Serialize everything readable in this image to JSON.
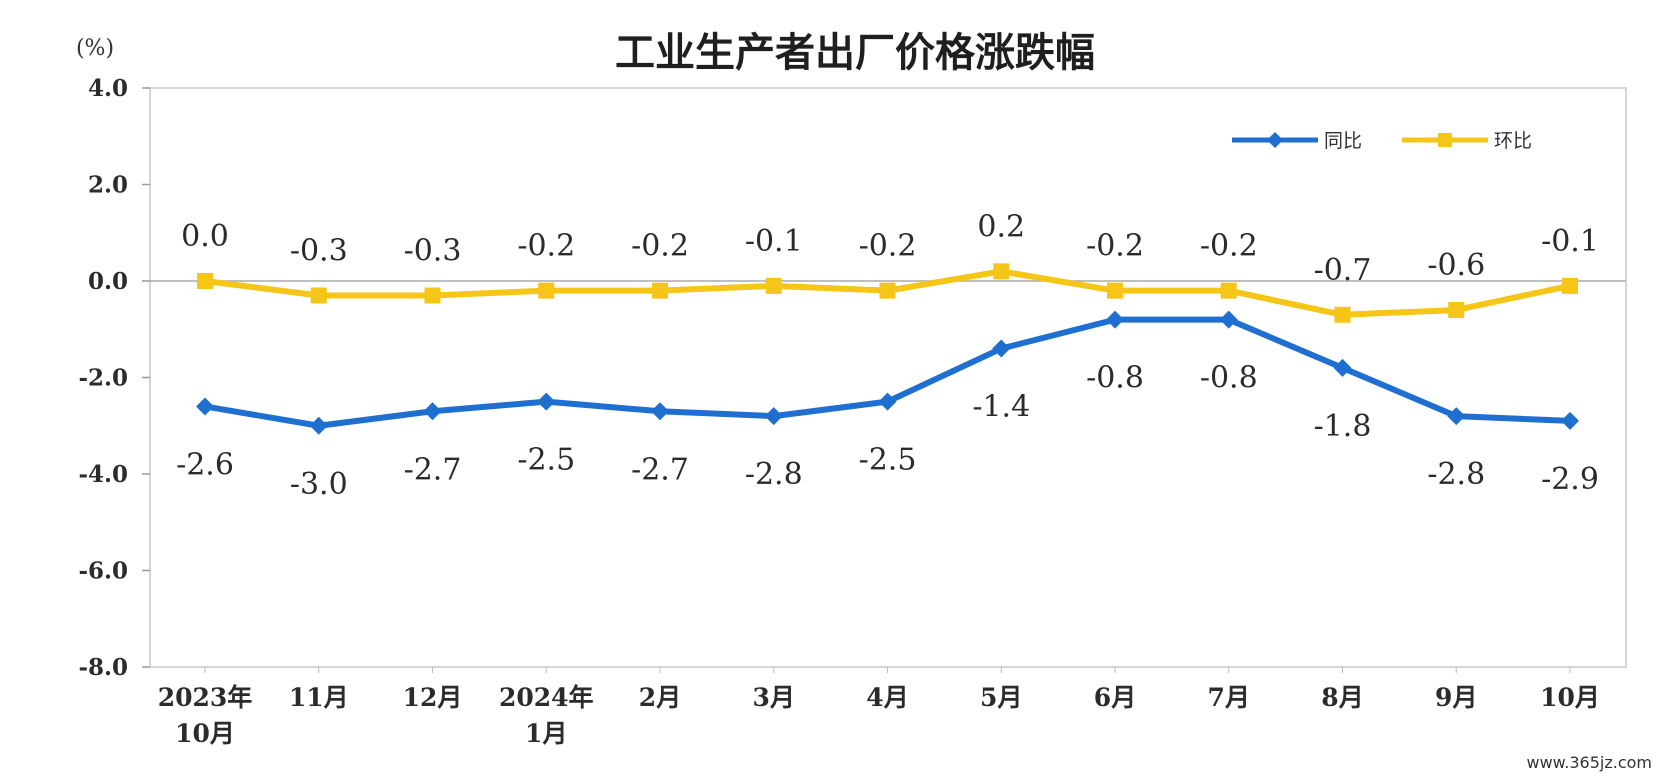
{
  "page": {
    "watermark": "www.365jz.com"
  },
  "chart_data": {
    "type": "line",
    "title": "工业生产者出厂价格涨跌幅",
    "unit_label": "(%)",
    "ylim": [
      -8.0,
      4.0
    ],
    "yticks": [
      "4.0",
      "2.0",
      "0.0",
      "-2.0",
      "-4.0",
      "-6.0",
      "-8.0"
    ],
    "ytick_values": [
      4.0,
      2.0,
      0.0,
      -2.0,
      -4.0,
      -6.0,
      -8.0
    ],
    "categories": [
      [
        "2023年",
        "10月"
      ],
      [
        "11月"
      ],
      [
        "12月"
      ],
      [
        "2024年",
        "1月"
      ],
      [
        "2月"
      ],
      [
        "3月"
      ],
      [
        "4月"
      ],
      [
        "5月"
      ],
      [
        "6月"
      ],
      [
        "7月"
      ],
      [
        "8月"
      ],
      [
        "9月"
      ],
      [
        "10月"
      ]
    ],
    "grid": "horizontal zero line only",
    "legend_position": "top-right",
    "series": [
      {
        "name": "同比",
        "color": "#1f6fd1",
        "marker": "diamond",
        "label_position": "below",
        "values": [
          -2.6,
          -3.0,
          -2.7,
          -2.5,
          -2.7,
          -2.8,
          -2.5,
          -1.4,
          -0.8,
          -0.8,
          -1.8,
          -2.8,
          -2.9
        ],
        "labels": [
          "-2.6",
          "-3.0",
          "-2.7",
          "-2.5",
          "-2.7",
          "-2.8",
          "-2.5",
          "-1.4",
          "-0.8",
          "-0.8",
          "-1.8",
          "-2.8",
          "-2.9"
        ]
      },
      {
        "name": "环比",
        "color": "#f5c518",
        "marker": "square",
        "label_position": "above",
        "values": [
          0.0,
          -0.3,
          -0.3,
          -0.2,
          -0.2,
          -0.1,
          -0.2,
          0.2,
          -0.2,
          -0.2,
          -0.7,
          -0.6,
          -0.1
        ],
        "labels": [
          "0.0",
          "-0.3",
          "-0.3",
          "-0.2",
          "-0.2",
          "-0.1",
          "-0.2",
          "0.2",
          "-0.2",
          "-0.2",
          "-0.7",
          "-0.6",
          "-0.1"
        ]
      }
    ]
  }
}
